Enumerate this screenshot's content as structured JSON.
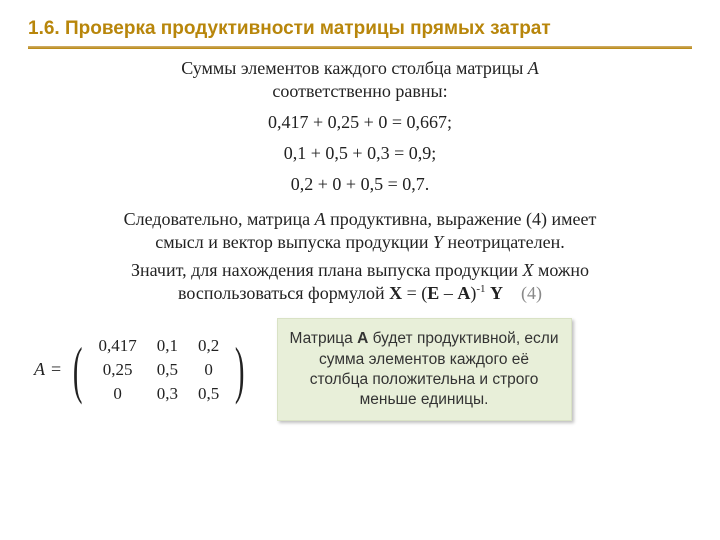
{
  "title": "1.6. Проверка продуктивности матрицы прямых затрат",
  "intro_line1": "Суммы элементов каждого столбца матрицы ",
  "intro_A": "A",
  "intro_line3": "соответственно равны:",
  "equations": {
    "eq1": "0,417 + 0,25 + 0 = 0,667;",
    "eq2": "0,1 + 0,5 + 0,3 = 0,9;",
    "eq3": "0,2 + 0 + 0,5 = 0,7."
  },
  "conclusion1_a": "Следовательно, матрица ",
  "conclusion1_A": "A",
  "conclusion1_b": " продуктивна, выражение (4) имеет",
  "conclusion1_c": "смысл и вектор выпуска продукции ",
  "conclusion1_Y": "Y",
  "conclusion1_d": " неотрицателен.",
  "conclusion2_a": "Значит, для нахождения плана выпуска продукции ",
  "conclusion2_X": "X",
  "conclusion2_b": " можно",
  "conclusion2_c": "воспользоваться формулой ",
  "formula_X": "X",
  "formula_eq": " = (",
  "formula_E": "E",
  "formula_minus": " – ",
  "formula_A": "A",
  "formula_close": ")",
  "formula_exp": "-1",
  "formula_sp": " ",
  "formula_Y": "Y",
  "formula_num": "(4)",
  "matrix": {
    "label": "A",
    "eq": "=",
    "rows": [
      [
        "0,417",
        "0,1",
        "0,2"
      ],
      [
        "0,25",
        "0,5",
        "0"
      ],
      [
        "0",
        "0,3",
        "0,5"
      ]
    ]
  },
  "note_a": "Матрица ",
  "note_A": "A",
  "note_b": " будет продуктивной, если сумма элементов каждого её столбца положительна и строго меньше единицы.",
  "colors": {
    "title": "#b8860b",
    "rule": "#b8860b",
    "note_bg": "#e8efd9",
    "eqnum": "#888888",
    "text": "#222222"
  },
  "typography": {
    "title_font": "Arial",
    "title_size_pt": 14,
    "body_font": "Times New Roman",
    "body_size_pt": 14,
    "note_font": "Arial",
    "note_size_pt": 12
  }
}
